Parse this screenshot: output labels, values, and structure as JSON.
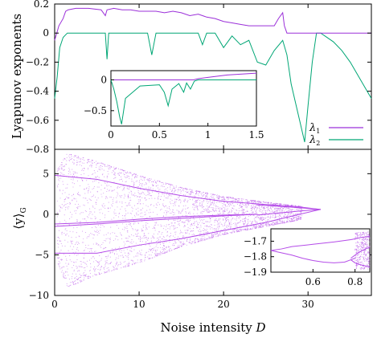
{
  "colors": {
    "lambda1": "#9b30d9",
    "lambda2": "#00a675",
    "bifurcation": "#b44be8",
    "frame": "#000000"
  },
  "chart_data": [
    {
      "id": "lyapunov",
      "type": "line",
      "ylabel": "Lyapunov exponents",
      "xlim": [
        0,
        37.5
      ],
      "ylim": [
        -0.8,
        0.2
      ],
      "yticks": [
        "0.2",
        "0",
        "−0.2",
        "−0.4",
        "−0.6",
        "−0.8"
      ],
      "yticks_values": [
        0.2,
        0,
        -0.2,
        -0.4,
        -0.6,
        -0.8
      ],
      "legend": [
        {
          "key": "lambda1",
          "label_main": "λ",
          "label_sub": "1"
        },
        {
          "key": "lambda2",
          "label_main": "λ",
          "label_sub": "2"
        }
      ],
      "legend_position": "bottom-right",
      "series": [
        {
          "key": "lambda1",
          "note": "positive plateau with dips",
          "x": [
            0,
            0.5,
            1.0,
            1.3,
            1.6,
            2.5,
            4,
            5.5,
            6,
            6.2,
            7,
            8,
            9,
            10,
            11,
            12,
            13,
            14,
            15,
            16,
            17,
            18,
            19,
            20,
            21,
            22,
            23,
            24,
            25,
            26,
            26.5,
            27,
            27.2,
            27.5,
            28,
            29,
            30,
            31,
            32,
            33,
            34,
            35,
            36,
            37.5
          ],
          "y": [
            -0.05,
            0.05,
            0.1,
            0.15,
            0.16,
            0.17,
            0.17,
            0.16,
            0.12,
            0.16,
            0.17,
            0.16,
            0.16,
            0.15,
            0.15,
            0.15,
            0.14,
            0.15,
            0.14,
            0.12,
            0.13,
            0.11,
            0.1,
            0.08,
            0.07,
            0.06,
            0.05,
            0.05,
            0.05,
            0.05,
            0.1,
            0.14,
            0.05,
            0,
            0,
            0,
            0,
            0,
            0,
            0,
            0,
            0,
            0,
            0
          ]
        },
        {
          "key": "lambda2",
          "note": "zero line with negative spikes, then drop after D≈31",
          "x": [
            0,
            0.3,
            0.6,
            1.0,
            1.5,
            2,
            6,
            6.2,
            6.4,
            7,
            11,
            11.5,
            12,
            13,
            14,
            15,
            16,
            17,
            17.5,
            18,
            19,
            20,
            21,
            22,
            23,
            24,
            25,
            26,
            27,
            27.5,
            28,
            29,
            29.6,
            30,
            30.5,
            31,
            31.5,
            32,
            33,
            34,
            35,
            36,
            37,
            37.5
          ],
          "y": [
            -0.45,
            -0.3,
            -0.1,
            -0.03,
            0,
            0,
            0,
            -0.18,
            0,
            0,
            0,
            -0.15,
            0,
            0,
            0,
            0,
            0,
            0,
            -0.08,
            0,
            0,
            -0.1,
            -0.02,
            -0.08,
            -0.05,
            -0.2,
            -0.22,
            -0.12,
            -0.05,
            -0.15,
            -0.35,
            -0.6,
            -0.75,
            -0.5,
            -0.2,
            0,
            0,
            -0.02,
            -0.06,
            -0.12,
            -0.2,
            -0.3,
            -0.4,
            -0.45
          ]
        }
      ]
    },
    {
      "id": "lyapunov-inset",
      "type": "line",
      "xlim": [
        0,
        1.5
      ],
      "ylim": [
        -0.75,
        0.15
      ],
      "xticks": [
        "0",
        "0.5",
        "1",
        "1.5"
      ],
      "xticks_values": [
        0,
        0.5,
        1,
        1.5
      ],
      "yticks": [
        "0",
        "−0.5"
      ],
      "yticks_values": [
        0,
        -0.5
      ],
      "series": [
        {
          "key": "lambda1",
          "x": [
            0,
            0.5,
            0.85,
            0.9,
            1.0,
            1.1,
            1.2,
            1.3,
            1.4,
            1.5
          ],
          "y": [
            0,
            0,
            0,
            0.02,
            0.04,
            0.06,
            0.08,
            0.09,
            0.1,
            0.11
          ]
        },
        {
          "key": "lambda2",
          "x": [
            0,
            0.03,
            0.06,
            0.09,
            0.11,
            0.15,
            0.3,
            0.5,
            0.55,
            0.59,
            0.63,
            0.7,
            0.75,
            0.78,
            0.82,
            0.86,
            0.9,
            1.0,
            1.5
          ],
          "y": [
            0,
            -0.15,
            -0.35,
            -0.6,
            -0.72,
            -0.3,
            -0.1,
            -0.08,
            -0.2,
            -0.42,
            -0.15,
            -0.06,
            -0.2,
            -0.05,
            -0.15,
            -0.02,
            0,
            0,
            0
          ]
        }
      ]
    },
    {
      "id": "bifurcation",
      "type": "scatter",
      "xlabel_main": "Noise intensity ",
      "xlabel_var": "D",
      "ylabel_main": "⟨y⟩",
      "ylabel_sub": "G",
      "xlim": [
        0,
        37.5
      ],
      "ylim": [
        -10,
        8
      ],
      "xticks": [
        "0",
        "10",
        "20",
        "30"
      ],
      "xticks_values": [
        0,
        10,
        20,
        30
      ],
      "yticks": [
        "5",
        "0",
        "−5",
        "−10"
      ],
      "yticks_values": [
        5,
        0,
        -5,
        -10
      ],
      "envelope": {
        "x": [
          0,
          1.5,
          5,
          10,
          15,
          20,
          25,
          29,
          31.5
        ],
        "upper": [
          5.0,
          7.5,
          6.5,
          4.8,
          3.3,
          2.2,
          1.5,
          1.0,
          0.6
        ],
        "lower": [
          -5.0,
          -9.0,
          -7.5,
          -6.0,
          -4.0,
          -2.5,
          -1.5,
          -0.7,
          0.6
        ]
      },
      "branches": [
        {
          "x": [
            0,
            5,
            10,
            15,
            20,
            25,
            29,
            31.5
          ],
          "y": [
            4.8,
            4.3,
            3.2,
            2.3,
            1.6,
            1.2,
            0.9,
            0.6
          ]
        },
        {
          "x": [
            0,
            5,
            10,
            15,
            20,
            25,
            29,
            31.5
          ],
          "y": [
            -4.8,
            -4.8,
            -3.8,
            -3.0,
            -2.0,
            -1.0,
            0.0,
            0.6
          ]
        },
        {
          "x": [
            0,
            5,
            10,
            15,
            20,
            24
          ],
          "y": [
            -1.5,
            -1.2,
            -0.8,
            -0.5,
            -0.2,
            0.0
          ]
        },
        {
          "x": [
            0,
            5,
            10,
            15,
            20,
            24
          ],
          "y": [
            -1.2,
            -1.0,
            -0.6,
            -0.3,
            -0.1,
            0.0
          ]
        }
      ]
    },
    {
      "id": "bifurcation-inset",
      "type": "scatter",
      "xlim": [
        0.4,
        0.87
      ],
      "ylim": [
        -1.9,
        -1.62
      ],
      "xticks": [
        "0.6",
        "0.8"
      ],
      "xticks_values": [
        0.6,
        0.8
      ],
      "yticks": [
        "−1.7",
        "−1.8",
        "−1.9"
      ],
      "yticks_values": [
        -1.7,
        -1.8,
        -1.9
      ],
      "branches": [
        {
          "x": [
            0.4,
            0.45,
            0.5,
            0.6,
            0.7,
            0.78,
            0.8,
            0.83,
            0.87
          ],
          "y": [
            -1.76,
            -1.75,
            -1.735,
            -1.72,
            -1.705,
            -1.69,
            -1.685,
            -1.675,
            -1.67
          ]
        },
        {
          "x": [
            0.4,
            0.45,
            0.5,
            0.55,
            0.6,
            0.65,
            0.7,
            0.75,
            0.78,
            0.8
          ],
          "y": [
            -1.76,
            -1.775,
            -1.79,
            -1.81,
            -1.825,
            -1.835,
            -1.84,
            -1.835,
            -1.82,
            -1.81
          ]
        },
        {
          "x": [
            0.78,
            0.8,
            0.82,
            0.85,
            0.87
          ],
          "y": [
            -1.81,
            -1.79,
            -1.77,
            -1.75,
            -1.74
          ]
        },
        {
          "x": [
            0.78,
            0.8,
            0.82,
            0.85,
            0.87
          ],
          "y": [
            -1.82,
            -1.84,
            -1.85,
            -1.86,
            -1.87
          ]
        }
      ],
      "chaos_start": 0.8
    }
  ]
}
